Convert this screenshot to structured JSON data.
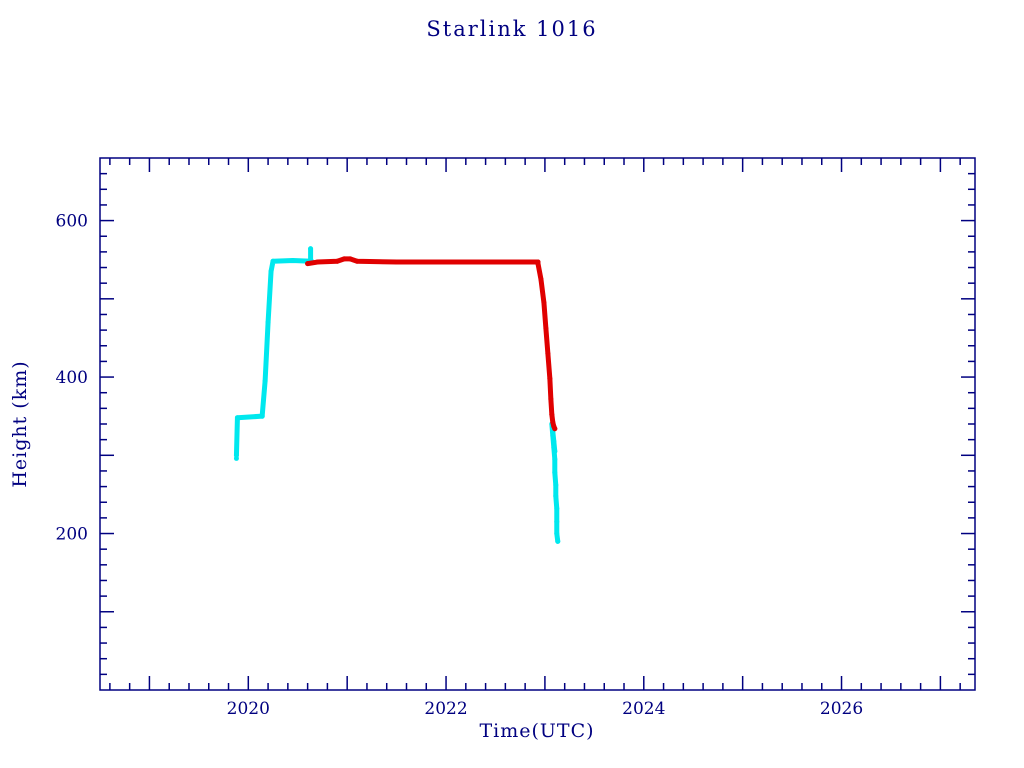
{
  "chart_data": {
    "type": "scatter",
    "title": "Starlink 1016",
    "xlabel": "Time(UTC)",
    "ylabel": "Height (km)",
    "xlim": [
      2018.5,
      2027.35
    ],
    "ylim": [
      0,
      680
    ],
    "grid": false,
    "legend": "none",
    "frame_color": "#000080",
    "background": "#ffffff",
    "xticks": {
      "major_step": 1,
      "minor_step": 0.2,
      "labels": [
        {
          "v": 2020,
          "t": "2020"
        },
        {
          "v": 2022,
          "t": "2022"
        },
        {
          "v": 2024,
          "t": "2024"
        },
        {
          "v": 2026,
          "t": "2026"
        }
      ]
    },
    "yticks": {
      "major_step": 100,
      "minor_step": 20,
      "labels": [
        {
          "v": 200,
          "t": "200"
        },
        {
          "v": 400,
          "t": "400"
        },
        {
          "v": 600,
          "t": "600"
        }
      ]
    },
    "series": [
      {
        "name": "track-line",
        "color": "#000080",
        "width": 1,
        "marker_r": 0,
        "segments": [
          [
            [
              2023.1,
              300
            ],
            [
              2023.13,
              188
            ]
          ]
        ]
      },
      {
        "name": "cyan",
        "color": "#00e8ee",
        "width": 5,
        "marker_r": 2.5,
        "segments": [
          [
            [
              2019.88,
              296
            ]
          ],
          [
            [
              2019.88,
              300
            ],
            [
              2019.89,
              348
            ],
            [
              2020.14,
              350
            ]
          ],
          [
            [
              2020.14,
              350
            ],
            [
              2020.17,
              395
            ],
            [
              2020.2,
              470
            ],
            [
              2020.23,
              535
            ],
            [
              2020.25,
              548
            ],
            [
              2020.45,
              549
            ],
            [
              2020.64,
              548
            ]
          ],
          [
            [
              2020.63,
              548
            ],
            [
              2020.63,
              564
            ]
          ],
          [
            [
              2023.08,
              330
            ],
            [
              2023.09,
              318
            ],
            [
              2023.1,
              305
            ]
          ],
          [
            [
              2023.07,
              340
            ],
            [
              2023.08,
              325
            ],
            [
              2023.09,
              310
            ],
            [
              2023.1,
              295
            ],
            [
              2023.1,
              278
            ],
            [
              2023.11,
              262
            ],
            [
              2023.11,
              248
            ],
            [
              2023.12,
              232
            ],
            [
              2023.12,
              215
            ],
            [
              2023.12,
              200
            ],
            [
              2023.13,
              190
            ]
          ]
        ]
      },
      {
        "name": "red",
        "color": "#e00000",
        "width": 5,
        "marker_r": 2.5,
        "segments": [
          [
            [
              2020.6,
              545
            ],
            [
              2020.7,
              547
            ],
            [
              2020.9,
              548
            ],
            [
              2020.97,
              551
            ],
            [
              2021.03,
              551
            ],
            [
              2021.1,
              548
            ],
            [
              2021.5,
              547
            ],
            [
              2022.0,
              547
            ],
            [
              2022.5,
              547
            ],
            [
              2022.93,
              547
            ]
          ],
          [
            [
              2022.93,
              545
            ],
            [
              2022.96,
              525
            ],
            [
              2022.99,
              495
            ],
            [
              2023.01,
              462
            ],
            [
              2023.03,
              430
            ],
            [
              2023.05,
              398
            ],
            [
              2023.06,
              372
            ],
            [
              2023.07,
              352
            ],
            [
              2023.08,
              342
            ],
            [
              2023.09,
              337
            ],
            [
              2023.1,
              334
            ]
          ]
        ]
      }
    ]
  }
}
